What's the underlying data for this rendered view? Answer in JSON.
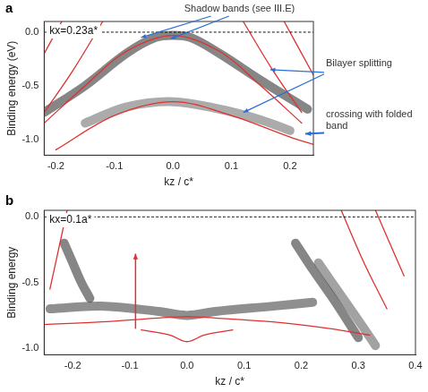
{
  "chart_data": [
    {
      "type": "line",
      "panel": "a",
      "label": "kx=0.23a*",
      "x_label": "kz / c*",
      "y_label": "Binding energy (eV)",
      "annotations": [
        "Shadow bands (see III.E)",
        "Bilayer splitting",
        "crossing with folded band"
      ],
      "xlim": [
        -0.22,
        0.24
      ],
      "xticks": [
        -0.2,
        -0.1,
        {
          "value": 0,
          "label": "0.0"
        },
        0.1,
        0.2
      ],
      "ylim": [
        -1.15,
        0.1
      ],
      "yticks": [
        {
          "value": 0,
          "label": "0.0"
        },
        -0.5,
        {
          "value": -1,
          "label": "-1.0"
        }
      ],
      "grid": false,
      "series": [
        {
          "color": "#222222",
          "line_style": "thick",
          "x": [
            -0.22,
            -0.15,
            -0.08,
            -0.03,
            0,
            0.03,
            0.08,
            0.15,
            0.23
          ],
          "values": [
            -0.75,
            -0.5,
            -0.2,
            -0.05,
            -0.03,
            -0.05,
            -0.2,
            -0.45,
            -0.72
          ]
        },
        {
          "color": "#666666",
          "line_style": "thick",
          "x": [
            -0.15,
            -0.08,
            0,
            0.08,
            0.15,
            0.2
          ],
          "values": [
            -0.85,
            -0.7,
            -0.65,
            -0.72,
            -0.82,
            -0.92
          ]
        },
        {
          "color": "#e03030",
          "line_style": "solid",
          "x": [
            -0.22,
            -0.15,
            -0.08,
            0,
            0.08,
            0.15,
            0.22
          ],
          "values": [
            -0.85,
            -0.5,
            -0.18,
            -0.03,
            -0.18,
            -0.5,
            -0.85
          ]
        },
        {
          "color": "#e03030",
          "line_style": "solid",
          "x": [
            -0.2,
            -0.1,
            0,
            0.1,
            0.2,
            0.24
          ],
          "values": [
            -1.1,
            -0.78,
            -0.65,
            -0.78,
            -0.98,
            -1.05
          ]
        },
        {
          "color": "#e03030",
          "line_style": "solid",
          "x": [
            -0.24,
            -0.19
          ],
          "values": [
            -0.4,
            0.1
          ]
        },
        {
          "color": "#e03030",
          "line_style": "solid",
          "x": [
            -0.22,
            -0.17,
            -0.12
          ],
          "values": [
            -0.75,
            -0.35,
            0.1
          ]
        },
        {
          "color": "#e03030",
          "line_style": "solid",
          "x": [
            0.12,
            0.17,
            0.22
          ],
          "values": [
            0.1,
            -0.35,
            -0.75
          ]
        },
        {
          "color": "#e03030",
          "line_style": "solid",
          "x": [
            0.19,
            0.24
          ],
          "values": [
            0.1,
            -0.4
          ]
        },
        {
          "color": "#000000",
          "line_style": "dotted",
          "x": [
            -0.22,
            0.24
          ],
          "values": [
            0,
            0
          ]
        }
      ]
    },
    {
      "type": "line",
      "panel": "b",
      "label": "kx=0.1a*",
      "x_label": "kz / c*",
      "y_label": "Binding energy",
      "xlim": [
        -0.25,
        0.4
      ],
      "xticks": [
        -0.2,
        -0.1,
        {
          "value": 0,
          "label": "0.0"
        },
        0.1,
        0.2,
        0.3,
        0.4
      ],
      "ylim": [
        -1.05,
        0.05
      ],
      "yticks": [
        {
          "value": 0,
          "label": "0.0"
        },
        -0.5,
        {
          "value": -1,
          "label": "-1.0"
        }
      ],
      "grid": false,
      "series": [
        {
          "color": "#333333",
          "line_style": "thick",
          "x": [
            -0.24,
            -0.15,
            -0.05,
            0,
            0.05,
            0.15,
            0.22
          ],
          "values": [
            -0.7,
            -0.68,
            -0.72,
            -0.75,
            -0.72,
            -0.68,
            -0.65
          ]
        },
        {
          "color": "#222222",
          "line_style": "thick",
          "x": [
            -0.215,
            -0.2,
            -0.185,
            -0.17
          ],
          "values": [
            -0.2,
            -0.35,
            -0.5,
            -0.62
          ]
        },
        {
          "color": "#222222",
          "line_style": "thick",
          "x": [
            0.19,
            0.22,
            0.26,
            0.3
          ],
          "values": [
            -0.2,
            -0.4,
            -0.65,
            -0.92
          ]
        },
        {
          "color": "#555555",
          "line_style": "thick",
          "x": [
            0.23,
            0.27,
            0.31,
            0.33
          ],
          "values": [
            -0.35,
            -0.6,
            -0.85,
            -0.98
          ]
        },
        {
          "color": "#e03030",
          "line_style": "solid",
          "x": [
            -0.25,
            -0.15,
            -0.05,
            0,
            0.05,
            0.15,
            0.25,
            0.32
          ],
          "values": [
            -0.82,
            -0.8,
            -0.77,
            -0.76,
            -0.77,
            -0.8,
            -0.85,
            -0.9
          ]
        },
        {
          "color": "#e03030",
          "line_style": "solid",
          "x": [
            -0.08,
            -0.03,
            0,
            0.03,
            0.08
          ],
          "values": [
            -0.86,
            -0.9,
            -0.95,
            -0.9,
            -0.86
          ]
        },
        {
          "color": "#e03030",
          "line_style": "solid",
          "x": [
            -0.24,
            -0.21
          ],
          "values": [
            -0.55,
            0.05
          ]
        },
        {
          "color": "#e03030",
          "line_style": "solid",
          "x": [
            0.27,
            0.31,
            0.35
          ],
          "values": [
            0.05,
            -0.35,
            -0.7
          ]
        },
        {
          "color": "#e03030",
          "line_style": "solid",
          "x": [
            0.33,
            0.38
          ],
          "values": [
            0.05,
            -0.45
          ]
        },
        {
          "color": "#000000",
          "line_style": "dotted",
          "x": [
            -0.25,
            0.4
          ],
          "values": [
            0,
            0
          ]
        }
      ]
    }
  ]
}
